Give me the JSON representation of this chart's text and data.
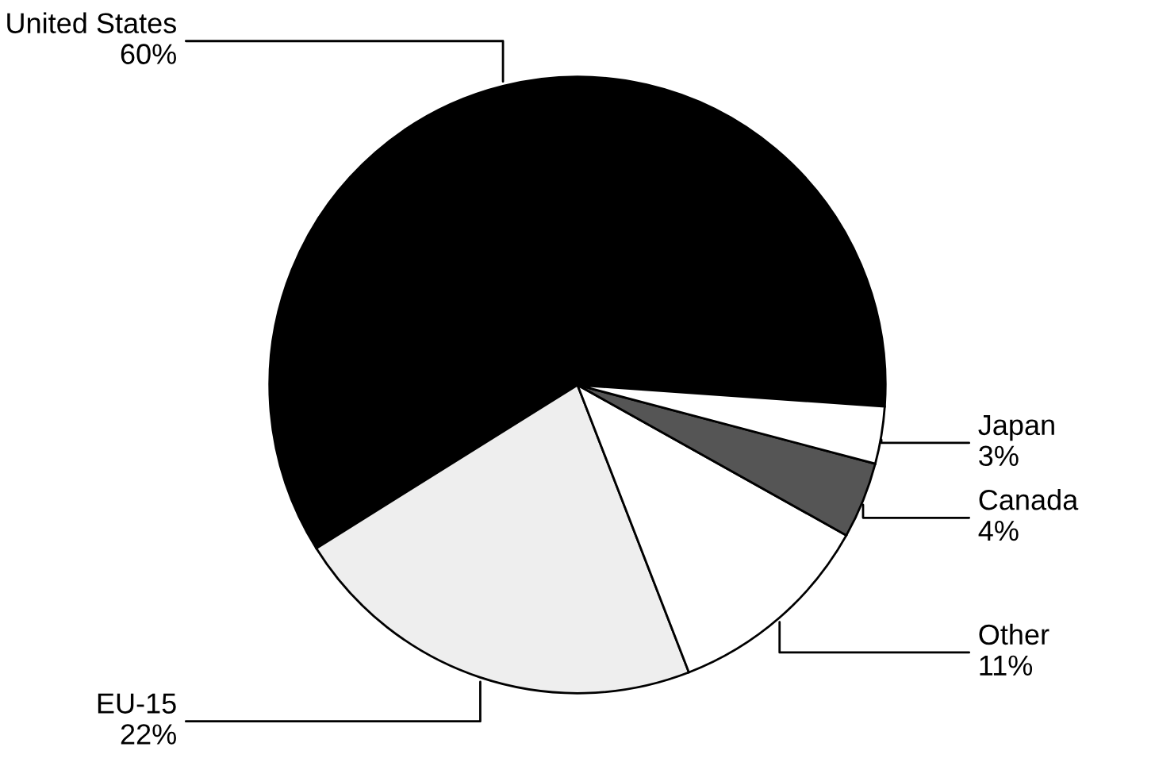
{
  "chart_data": {
    "type": "pie",
    "categories": [
      "United States",
      "EU-15",
      "Other",
      "Canada",
      "Japan"
    ],
    "values": [
      60,
      22,
      11,
      4,
      3
    ],
    "colors": [
      "#000000",
      "#eeeeee",
      "#ffffff",
      "#555555",
      "#ffffff"
    ],
    "value_labels": [
      "60%",
      "22%",
      "11%",
      "4%",
      "3%"
    ],
    "legend": false
  }
}
